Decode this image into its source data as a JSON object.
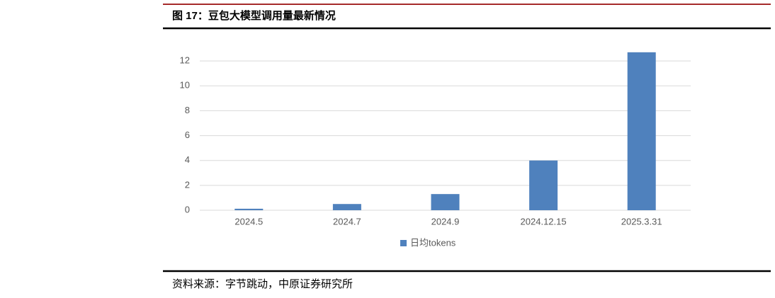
{
  "chart_data": {
    "type": "bar",
    "title": "图 17：豆包大模型调用量最新情况",
    "source": "资料来源：字节跳动，中原证券研究所",
    "categories": [
      "2024.5",
      "2024.7",
      "2024.9",
      "2024.12.15",
      "2025.3.31"
    ],
    "series": [
      {
        "name": "日均tokens",
        "color": "#4f81bd",
        "values": [
          0.12,
          0.5,
          1.3,
          4,
          12.7
        ]
      }
    ],
    "ylim": [
      0,
      14
    ],
    "yticks": [
      0,
      2,
      4,
      6,
      8,
      10,
      12
    ],
    "grid": true,
    "legend": "bottom"
  }
}
